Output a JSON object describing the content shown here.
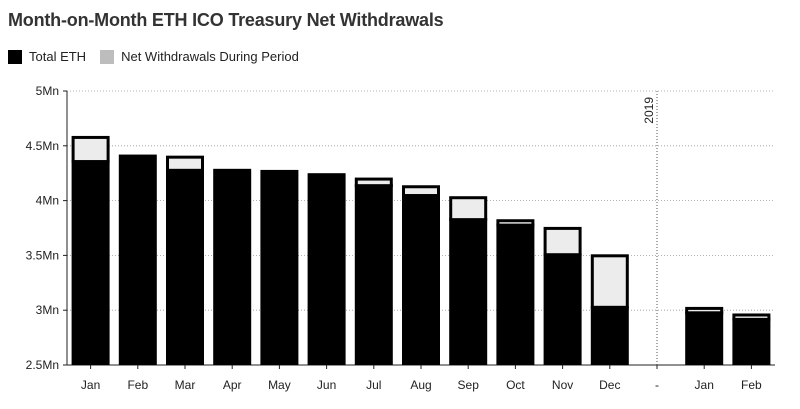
{
  "chart_data": {
    "type": "bar",
    "title": "Month-on-Month ETH ICO Treasury Net Withdrawals",
    "xlabel": "",
    "ylabel": "",
    "ylim": [
      2.5,
      5
    ],
    "yticks": [
      "2.5Mn",
      "3Mn",
      "3.5Mn",
      "4Mn",
      "4.5Mn",
      "5Mn"
    ],
    "ytick_values": [
      2.5,
      3,
      3.5,
      4,
      4.5,
      5
    ],
    "categories": [
      "Jan",
      "Feb",
      "Mar",
      "Apr",
      "May",
      "Jun",
      "Jul",
      "Aug",
      "Sep",
      "Oct",
      "Nov",
      "Dec",
      "-",
      "Jan",
      "Feb"
    ],
    "series": [
      {
        "name": "Total ETH",
        "color": "#000000",
        "values": [
          4.37,
          4.42,
          4.29,
          4.29,
          4.28,
          4.25,
          4.15,
          4.06,
          3.84,
          3.79,
          3.52,
          3.04,
          null,
          2.99,
          2.93
        ]
      },
      {
        "name": "Net Withdrawals During Period",
        "color": "#bdbdbd",
        "values": [
          0.22,
          0,
          0.12,
          0,
          0,
          0,
          0.06,
          0.08,
          0.2,
          0.04,
          0.24,
          0.47,
          null,
          0.04,
          0.04
        ]
      }
    ],
    "annotations": [
      {
        "text": "2019",
        "x": "-"
      }
    ],
    "grid": true,
    "legend": "top-left"
  },
  "legend": {
    "total_label": "Total ETH",
    "net_label": "Net Withdrawals During Period"
  }
}
